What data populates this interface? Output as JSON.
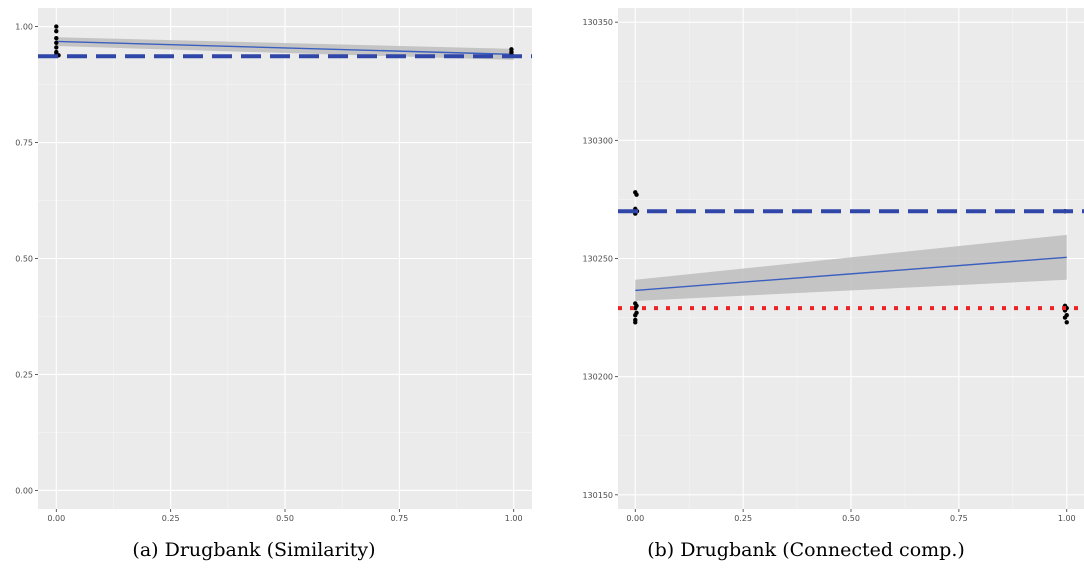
{
  "charts": [
    {
      "caption": "(a) Drugbank (Similarity)",
      "chart_data": {
        "type": "scatter",
        "xlabel": "",
        "ylabel": "",
        "xlim": [
          -0.04,
          1.04
        ],
        "ylim": [
          -0.04,
          1.04
        ],
        "xticks": [
          0,
          0.25,
          0.5,
          0.75,
          1
        ],
        "xtick_labels": [
          "0.00",
          "0.25",
          "0.50",
          "0.75",
          "1.00"
        ],
        "yticks": [
          0,
          0.25,
          0.5,
          0.75,
          1
        ],
        "ytick_labels": [
          "0.00",
          "0.25",
          "0.50",
          "0.75",
          "1.00"
        ],
        "grid": true,
        "points": [
          {
            "x": 0.0,
            "y": 1.0
          },
          {
            "x": 0.0,
            "y": 0.99
          },
          {
            "x": 0.0,
            "y": 0.975
          },
          {
            "x": 0.0,
            "y": 0.965
          },
          {
            "x": 0.0,
            "y": 0.955
          },
          {
            "x": 0.0,
            "y": 0.945
          },
          {
            "x": 0.0,
            "y": 0.94
          },
          {
            "x": 0.0,
            "y": 0.937
          },
          {
            "x": 0.005,
            "y": 0.938
          },
          {
            "x": 0.995,
            "y": 0.951
          },
          {
            "x": 0.995,
            "y": 0.945
          },
          {
            "x": 0.995,
            "y": 0.94
          }
        ],
        "fit_line": {
          "x": [
            0,
            1
          ],
          "y": [
            0.968,
            0.94
          ],
          "color": "#3b5fc0"
        },
        "confidence_band": {
          "x": [
            0,
            1
          ],
          "lower": [
            0.958,
            0.928
          ],
          "upper": [
            0.977,
            0.952
          ],
          "color": "#bdbdbd"
        },
        "hlines": [
          {
            "y": 0.936,
            "style": "dashed",
            "color": "#3046a8"
          }
        ]
      }
    },
    {
      "caption": "(b) Drugbank (Connected comp.)",
      "chart_data": {
        "type": "scatter",
        "xlabel": "",
        "ylabel": "",
        "xlim": [
          -0.04,
          1.04
        ],
        "ylim": [
          130144,
          130356
        ],
        "xticks": [
          0,
          0.25,
          0.5,
          0.75,
          1
        ],
        "xtick_labels": [
          "0.00",
          "0.25",
          "0.50",
          "0.75",
          "1.00"
        ],
        "yticks": [
          130150,
          130200,
          130250,
          130300,
          130350
        ],
        "ytick_labels": [
          "130150",
          "130200",
          "130250",
          "130300",
          "130350"
        ],
        "grid": true,
        "points": [
          {
            "x": 0.0,
            "y": 130278
          },
          {
            "x": 0.003,
            "y": 130277
          },
          {
            "x": 0.0,
            "y": 130271
          },
          {
            "x": 0.004,
            "y": 130270
          },
          {
            "x": 0.0,
            "y": 130269
          },
          {
            "x": 0.0,
            "y": 130231
          },
          {
            "x": 0.003,
            "y": 130230
          },
          {
            "x": 0.0,
            "y": 130229
          },
          {
            "x": 0.003,
            "y": 130227
          },
          {
            "x": 0.0,
            "y": 130226
          },
          {
            "x": 0.0,
            "y": 130224
          },
          {
            "x": 0.0,
            "y": 130223
          },
          {
            "x": 0.996,
            "y": 130270
          },
          {
            "x": 0.996,
            "y": 130230
          },
          {
            "x": 1.0,
            "y": 130229
          },
          {
            "x": 0.996,
            "y": 130228
          },
          {
            "x": 1.0,
            "y": 130226
          },
          {
            "x": 0.996,
            "y": 130225
          },
          {
            "x": 1.0,
            "y": 130223
          }
        ],
        "fit_line": {
          "x": [
            0,
            1
          ],
          "y": [
            130236.5,
            130250.5
          ],
          "color": "#3b5fc0"
        },
        "confidence_band": {
          "x": [
            0,
            1
          ],
          "lower": [
            130232,
            130241
          ],
          "upper": [
            130241,
            130260
          ],
          "color": "#bdbdbd"
        },
        "hlines": [
          {
            "y": 130270,
            "style": "dashed",
            "color": "#3046a8"
          },
          {
            "y": 130229,
            "style": "dotted",
            "color": "#ee2222"
          }
        ]
      }
    }
  ]
}
